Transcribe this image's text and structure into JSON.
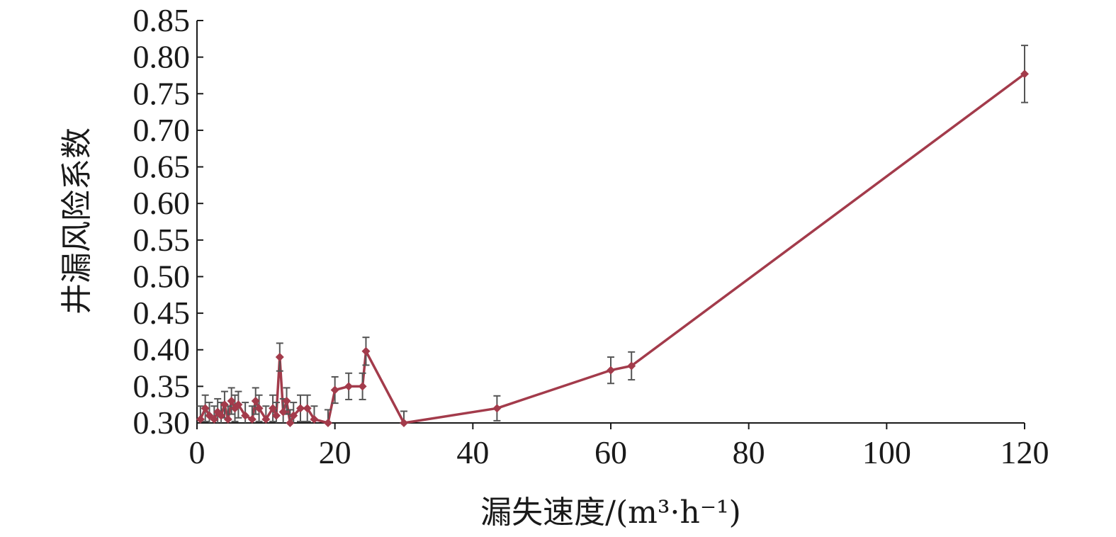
{
  "chart_data": {
    "type": "line",
    "xlabel": "漏失速度/(m³·h⁻¹)",
    "ylabel": "井漏风险系数",
    "xlim": [
      0,
      120
    ],
    "ylim": [
      0.3,
      0.85
    ],
    "x_ticks": [
      "0",
      "20",
      "40",
      "60",
      "80",
      "100",
      "120"
    ],
    "y_ticks": [
      "0.30",
      "0.35",
      "0.40",
      "0.45",
      "0.50",
      "0.55",
      "0.60",
      "0.65",
      "0.70",
      "0.75",
      "0.80",
      "0.85"
    ],
    "grid": false,
    "colors": {
      "series": "#a33b4b",
      "error_bar": "#555555",
      "axis": "#1a1a1a"
    },
    "series": [
      {
        "x": [
          0.5,
          1.2,
          1.8,
          2.5,
          3.0,
          3.5,
          4.0,
          4.5,
          5.0,
          5.5,
          6.0,
          7.0,
          8.0,
          8.5,
          9.0,
          10.0,
          11.0,
          11.5,
          12.0,
          12.5,
          13.0,
          13.5,
          14.0,
          15.0,
          16.0,
          17.0,
          19.0,
          20.0,
          22.0,
          24.0,
          24.5,
          30.0,
          43.5,
          60.0,
          63.0,
          120.0
        ],
        "y": [
          0.305,
          0.32,
          0.31,
          0.305,
          0.315,
          0.31,
          0.325,
          0.305,
          0.33,
          0.32,
          0.325,
          0.31,
          0.305,
          0.33,
          0.32,
          0.305,
          0.32,
          0.31,
          0.39,
          0.315,
          0.33,
          0.3,
          0.31,
          0.32,
          0.32,
          0.305,
          0.3,
          0.345,
          0.35,
          0.35,
          0.398,
          0.3,
          0.32,
          0.372,
          0.378,
          0.777
        ],
        "error": [
          0.018,
          0.018,
          0.018,
          0.018,
          0.018,
          0.018,
          0.018,
          0.018,
          0.018,
          0.018,
          0.018,
          0.018,
          0.018,
          0.018,
          0.018,
          0.018,
          0.018,
          0.018,
          0.019,
          0.018,
          0.018,
          0.018,
          0.018,
          0.018,
          0.018,
          0.018,
          0.018,
          0.018,
          0.018,
          0.018,
          0.019,
          0.016,
          0.017,
          0.018,
          0.019,
          0.039
        ]
      }
    ]
  }
}
